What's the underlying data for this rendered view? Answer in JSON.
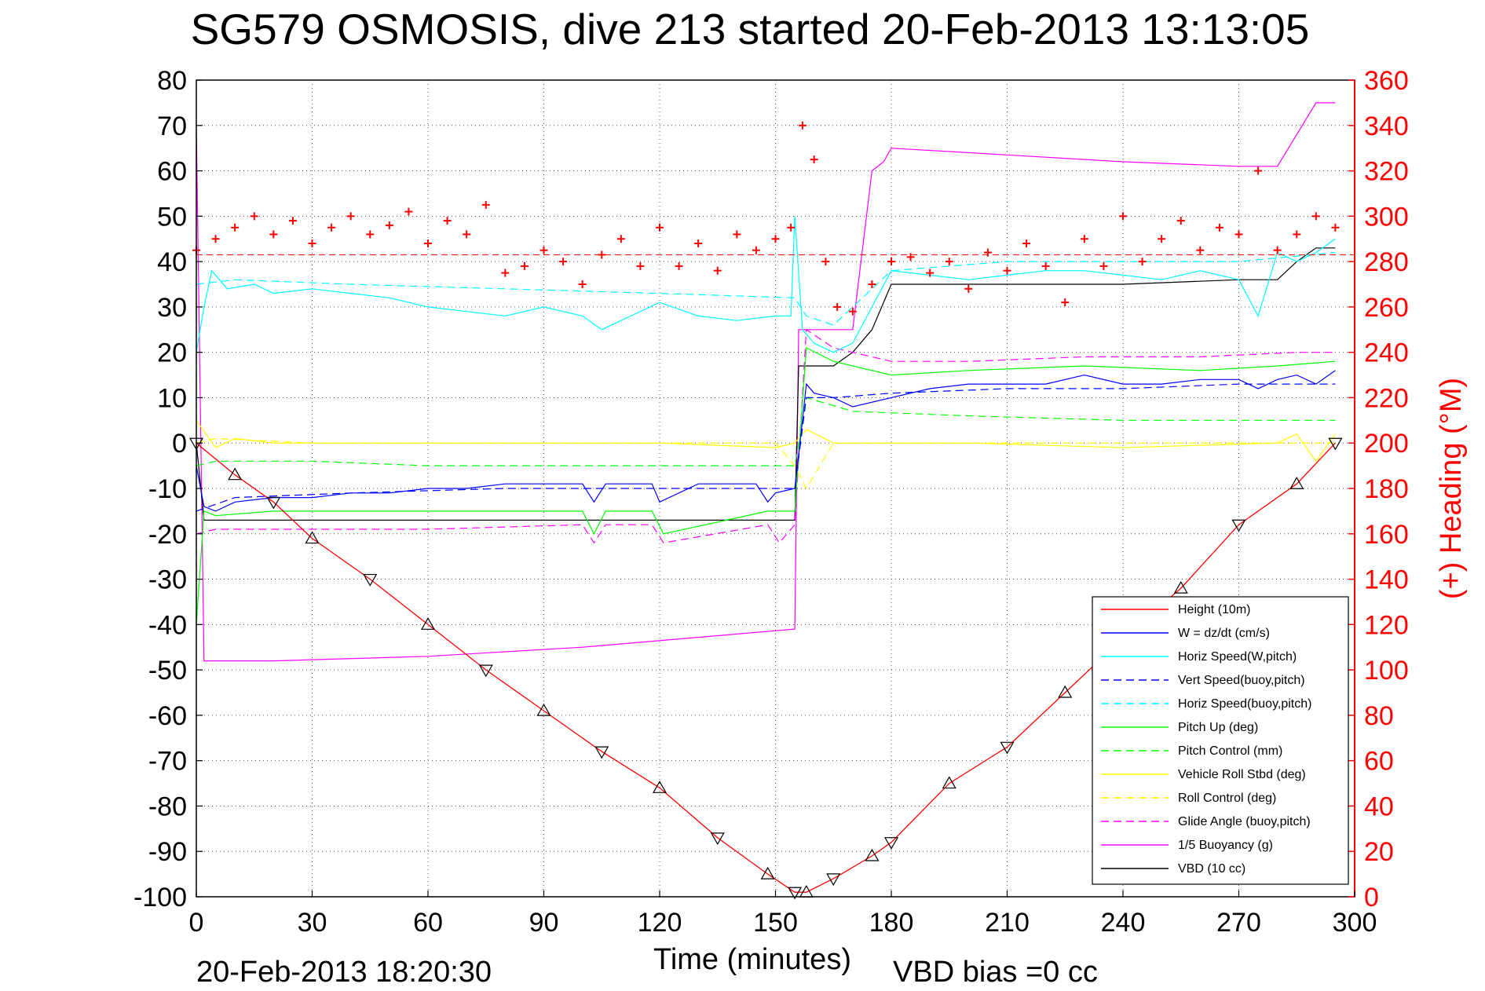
{
  "chart_data": {
    "type": "line",
    "title": "SG579 OSMOSIS, dive 213 started 20-Feb-2013 13:13:05",
    "xlabel": "Time (minutes)",
    "ylabel_right": "(+) Heading (°M)",
    "footer_left": "20-Feb-2013 18:20:30",
    "footer_right": "VBD bias =0 cc",
    "xlim": [
      0,
      300
    ],
    "ylim": [
      -100,
      80
    ],
    "ylim_right": [
      0,
      360
    ],
    "x_ticks": [
      "0",
      "30",
      "60",
      "90",
      "120",
      "150",
      "180",
      "210",
      "240",
      "270",
      "300"
    ],
    "y_ticks": [
      "80",
      "70",
      "60",
      "50",
      "40",
      "30",
      "20",
      "10",
      "0",
      "-10",
      "-20",
      "-30",
      "-40",
      "-50",
      "-60",
      "-70",
      "-80",
      "-90",
      "-100"
    ],
    "y_ticks_right": [
      "360",
      "340",
      "320",
      "300",
      "280",
      "260",
      "240",
      "220",
      "200",
      "180",
      "160",
      "140",
      "120",
      "100",
      "80",
      "60",
      "40",
      "20",
      "0"
    ],
    "grid": true,
    "legend_position": "bottom-right",
    "colors": {
      "height": "#ff0000",
      "w": "#0000ff",
      "horiz_w": "#00ffff",
      "vert_buoy": "#0000ff",
      "horiz_buoy": "#00ffff",
      "pitch_up": "#00ff00",
      "pitch_control": "#00ff00",
      "roll": "#ffff00",
      "roll_control": "#ffff00",
      "glide": "#ff00ff",
      "buoyancy": "#ff00ff",
      "vbd": "#000000",
      "heading": "#ff0000"
    },
    "legend": [
      {
        "key": "height",
        "label": "Height (10m)",
        "color": "#ff0000",
        "dash": "solid"
      },
      {
        "key": "w",
        "label": "W = dz/dt (cm/s)",
        "color": "#0000ff",
        "dash": "solid"
      },
      {
        "key": "horiz_w",
        "label": "Horiz Speed(W,pitch)",
        "color": "#00ffff",
        "dash": "solid"
      },
      {
        "key": "vert_buoy",
        "label": "Vert Speed(buoy,pitch)",
        "color": "#0000ff",
        "dash": "dashed"
      },
      {
        "key": "horiz_buoy",
        "label": "Horiz Speed(buoy,pitch)",
        "color": "#00ffff",
        "dash": "dashed"
      },
      {
        "key": "pitch_up",
        "label": "Pitch Up (deg)",
        "color": "#00ff00",
        "dash": "solid"
      },
      {
        "key": "pitch_control",
        "label": "Pitch Control (mm)",
        "color": "#00ff00",
        "dash": "dashed"
      },
      {
        "key": "roll",
        "label": "Vehicle Roll Stbd (deg)",
        "color": "#ffff00",
        "dash": "solid"
      },
      {
        "key": "roll_control",
        "label": "Roll Control (deg)",
        "color": "#ffff00",
        "dash": "dashed"
      },
      {
        "key": "glide",
        "label": "Glide Angle (buoy,pitch)",
        "color": "#ff00ff",
        "dash": "dashed"
      },
      {
        "key": "buoyancy",
        "label": "1/5 Buoyancy (g)",
        "color": "#ff00ff",
        "dash": "solid"
      },
      {
        "key": "vbd",
        "label": "VBD (10 cc)",
        "color": "#000000",
        "dash": "solid"
      }
    ],
    "series": [
      {
        "key": "height",
        "axis": "left",
        "x": [
          0,
          10,
          20,
          30,
          45,
          60,
          75,
          90,
          105,
          120,
          135,
          148,
          155,
          158,
          165,
          175,
          180,
          195,
          210,
          225,
          240,
          255,
          270,
          285,
          295
        ],
        "y": [
          0,
          -7,
          -13,
          -21,
          -30,
          -40,
          -50,
          -59,
          -68,
          -76,
          -87,
          -95,
          -99,
          -99,
          -96,
          -91,
          -88,
          -75,
          -67,
          -55,
          -43,
          -32,
          -18,
          -9,
          0
        ],
        "markers": "triangles"
      },
      {
        "key": "w",
        "axis": "left",
        "x": [
          0,
          2,
          5,
          10,
          20,
          30,
          40,
          50,
          60,
          70,
          80,
          90,
          100,
          103,
          106,
          118,
          120,
          130,
          145,
          148,
          150,
          155,
          157,
          158,
          160,
          165,
          170,
          180,
          190,
          200,
          205,
          220,
          230,
          240,
          250,
          260,
          270,
          275,
          280,
          285,
          290,
          295
        ],
        "y": [
          -5,
          -14,
          -15,
          -13,
          -12,
          -12,
          -11,
          -11,
          -10,
          -10,
          -9,
          -9,
          -9,
          -13,
          -9,
          -9,
          -13,
          -9,
          -9,
          -13,
          -11,
          -10,
          5,
          13,
          11,
          10,
          8,
          10,
          12,
          13,
          13,
          13,
          15,
          13,
          13,
          14,
          14,
          12,
          14,
          15,
          13,
          16
        ]
      },
      {
        "key": "horiz_w",
        "axis": "left",
        "x": [
          0,
          2,
          4,
          8,
          15,
          20,
          30,
          40,
          50,
          60,
          70,
          80,
          90,
          100,
          105,
          110,
          120,
          130,
          140,
          150,
          154,
          155,
          157,
          160,
          165,
          170,
          175,
          180,
          190,
          200,
          210,
          220,
          230,
          240,
          250,
          260,
          270,
          275,
          280,
          285,
          290,
          295
        ],
        "y": [
          20,
          30,
          38,
          34,
          35,
          33,
          34,
          33,
          32,
          30,
          29,
          28,
          30,
          28,
          25,
          27,
          31,
          28,
          27,
          28,
          28,
          50,
          25,
          22,
          20,
          22,
          30,
          38,
          37,
          36,
          37,
          38,
          38,
          37,
          36,
          38,
          36,
          28,
          42,
          40,
          42,
          45
        ]
      },
      {
        "key": "vert_buoy",
        "axis": "left",
        "dash": true,
        "x": [
          0,
          10,
          40,
          80,
          120,
          155,
          158,
          165,
          180,
          210,
          240,
          270,
          295
        ],
        "y": [
          -15,
          -12,
          -11,
          -10,
          -10,
          -10,
          10,
          10,
          11,
          12,
          12,
          13,
          13
        ]
      },
      {
        "key": "horiz_buoy",
        "axis": "left",
        "dash": true,
        "x": [
          0,
          10,
          40,
          80,
          120,
          155,
          158,
          165,
          180,
          210,
          240,
          270,
          295
        ],
        "y": [
          35,
          36,
          35,
          34,
          33,
          32,
          28,
          26,
          38,
          40,
          40,
          40,
          42
        ]
      },
      {
        "key": "pitch_up",
        "axis": "left",
        "x": [
          0,
          2,
          5,
          20,
          60,
          100,
          103,
          106,
          118,
          121,
          148,
          151,
          155,
          158,
          165,
          180,
          200,
          230,
          260,
          280,
          295
        ],
        "y": [
          -40,
          -15,
          -16,
          -15,
          -15,
          -15,
          -20,
          -15,
          -15,
          -20,
          -15,
          -15,
          -15,
          21,
          18,
          15,
          16,
          17,
          16,
          17,
          18
        ]
      },
      {
        "key": "pitch_control",
        "axis": "left",
        "dash": true,
        "x": [
          0,
          5,
          30,
          60,
          100,
          155,
          158,
          170,
          200,
          240,
          295
        ],
        "y": [
          -5,
          -4,
          -4,
          -5,
          -5,
          -5,
          10,
          7,
          6,
          5,
          5
        ]
      },
      {
        "key": "roll",
        "axis": "left",
        "x": [
          0,
          5,
          10,
          20,
          30,
          60,
          100,
          110,
          120,
          150,
          155,
          158,
          165,
          200,
          240,
          280,
          285,
          290,
          295
        ],
        "y": [
          5,
          -1,
          1,
          0,
          0,
          0,
          0,
          0,
          0,
          -1,
          0,
          3,
          0,
          0,
          -1,
          0,
          2,
          -4,
          2
        ]
      },
      {
        "key": "roll_control",
        "axis": "left",
        "dash": true,
        "x": [
          0,
          5,
          30,
          60,
          100,
          150,
          155,
          158,
          165,
          200,
          240,
          280,
          295
        ],
        "y": [
          0,
          1,
          0,
          0,
          0,
          0,
          -5,
          -10,
          0,
          0,
          0,
          0,
          0
        ]
      },
      {
        "key": "glide",
        "axis": "left",
        "dash": true,
        "x": [
          0,
          5,
          20,
          60,
          100,
          103,
          106,
          118,
          121,
          148,
          151,
          155,
          158,
          165,
          180,
          200,
          230,
          260,
          285,
          295
        ],
        "y": [
          -20,
          -19,
          -19,
          -19,
          -18,
          -22,
          -18,
          -18,
          -22,
          -18,
          -22,
          -18,
          25,
          21,
          18,
          18,
          19,
          19,
          20,
          20
        ]
      },
      {
        "key": "buoyancy",
        "axis": "left",
        "x": [
          0,
          2,
          20,
          60,
          100,
          155,
          156,
          170,
          175,
          178,
          180,
          200,
          240,
          270,
          280,
          285,
          290,
          295
        ],
        "y": [
          70,
          -48,
          -48,
          -47,
          -45,
          -41,
          25,
          25,
          60,
          62,
          65,
          64,
          62,
          61,
          61,
          68,
          75,
          75
        ]
      },
      {
        "key": "vbd",
        "axis": "left",
        "x": [
          0,
          2,
          20,
          60,
          100,
          155,
          156,
          165,
          170,
          175,
          180,
          200,
          240,
          270,
          280,
          285,
          290,
          295
        ],
        "y": [
          0,
          -17,
          -17,
          -17,
          -17,
          -17,
          17,
          17,
          20,
          25,
          35,
          35,
          35,
          36,
          36,
          40,
          43,
          43
        ]
      },
      {
        "key": "heading",
        "axis": "right",
        "markers": "plus",
        "x": [
          0,
          5,
          10,
          15,
          20,
          25,
          30,
          35,
          40,
          45,
          50,
          55,
          60,
          65,
          70,
          75,
          80,
          85,
          90,
          95,
          100,
          105,
          110,
          115,
          120,
          125,
          130,
          135,
          140,
          145,
          150,
          154,
          157,
          160,
          163,
          166,
          170,
          175,
          180,
          185,
          190,
          195,
          200,
          205,
          210,
          215,
          220,
          225,
          230,
          235,
          240,
          245,
          250,
          255,
          260,
          265,
          270,
          275,
          280,
          285,
          290,
          295
        ],
        "y": [
          285,
          290,
          295,
          300,
          292,
          298,
          288,
          295,
          300,
          292,
          296,
          302,
          288,
          298,
          292,
          305,
          275,
          278,
          285,
          280,
          270,
          283,
          290,
          278,
          295,
          278,
          288,
          276,
          292,
          285,
          290,
          295,
          340,
          325,
          280,
          260,
          258,
          270,
          280,
          282,
          275,
          280,
          268,
          284,
          276,
          288,
          278,
          262,
          290,
          278,
          300,
          280,
          290,
          298,
          285,
          295,
          292,
          320,
          285,
          292,
          300,
          295
        ],
        "ref_dashed": 283
      }
    ]
  }
}
